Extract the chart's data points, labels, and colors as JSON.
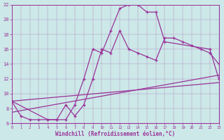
{
  "xlabel": "Windchill (Refroidissement éolien,°C)",
  "bg_color": "#cce8e8",
  "line_color": "#993399",
  "xlim": [
    0,
    23
  ],
  "ylim": [
    6,
    22
  ],
  "xticks": [
    0,
    1,
    2,
    3,
    4,
    5,
    6,
    7,
    8,
    9,
    10,
    11,
    12,
    13,
    14,
    15,
    16,
    17,
    18,
    19,
    20,
    21,
    22,
    23
  ],
  "yticks": [
    6,
    8,
    10,
    12,
    14,
    16,
    18,
    20,
    22
  ],
  "curve1_x": [
    0,
    1,
    2,
    3,
    4,
    5,
    6,
    7,
    8,
    9,
    10,
    11,
    12,
    13,
    14,
    15,
    16,
    17,
    22,
    23
  ],
  "curve1_y": [
    9.0,
    7.0,
    6.5,
    6.5,
    6.5,
    6.5,
    6.5,
    8.5,
    12.0,
    16.0,
    15.5,
    18.5,
    21.5,
    22.0,
    22.0,
    21.0,
    21.0,
    17.0,
    16.0,
    12.0
  ],
  "curve2_x": [
    0,
    4,
    5,
    6,
    7,
    8,
    9,
    10,
    11,
    12,
    13,
    14,
    15,
    16,
    17,
    18,
    19,
    20,
    21,
    22,
    23
  ],
  "curve2_y": [
    9.0,
    6.5,
    6.5,
    8.5,
    7.0,
    8.5,
    12.0,
    16.0,
    15.5,
    18.5,
    16.0,
    15.5,
    15.0,
    14.5,
    17.5,
    17.5,
    17.0,
    16.5,
    16.0,
    15.5,
    14.0
  ],
  "line1_x": [
    0,
    23
  ],
  "line1_y": [
    7.5,
    12.5
  ],
  "line2_x": [
    0,
    23
  ],
  "line2_y": [
    9.0,
    11.5
  ]
}
